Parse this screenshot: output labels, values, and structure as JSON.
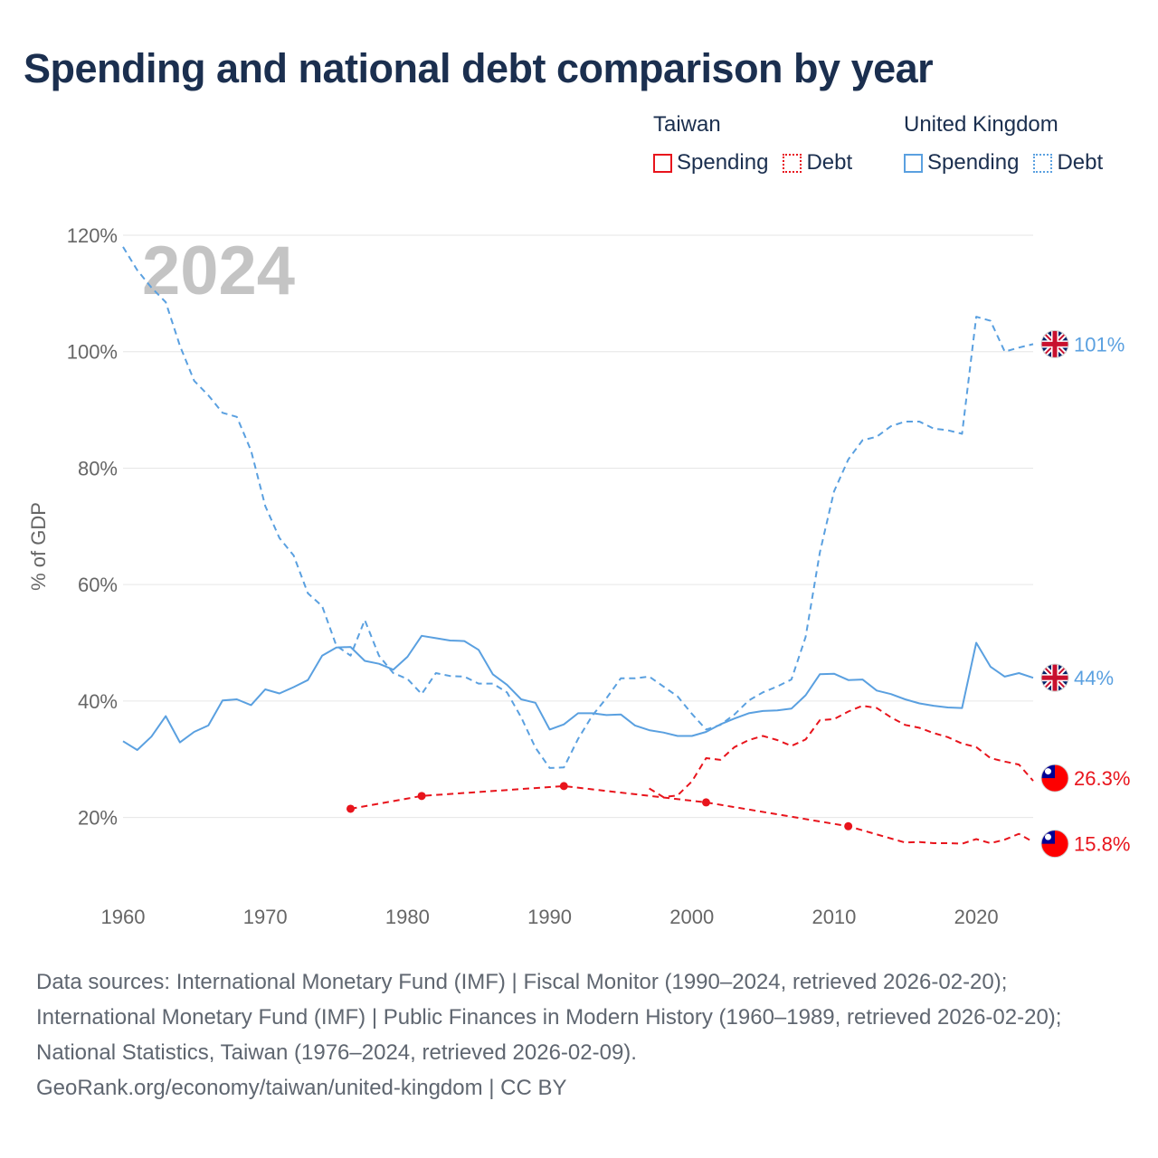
{
  "chart_data": {
    "type": "line",
    "title": "Spending and national debt comparison by year",
    "ylabel": "% of GDP",
    "xlim": [
      1960,
      2024
    ],
    "ylim": [
      10,
      120
    ],
    "yticks": [
      20,
      40,
      60,
      80,
      100,
      120
    ],
    "ytick_labels": [
      "20%",
      "40%",
      "60%",
      "80%",
      "100%",
      "120%"
    ],
    "xticks": [
      1960,
      1970,
      1980,
      1990,
      2000,
      2010,
      2020
    ],
    "xtick_labels": [
      "1960",
      "1970",
      "1980",
      "1990",
      "2000",
      "2010",
      "2020"
    ],
    "year_label": "2024",
    "grid": true,
    "legend": {
      "groups": [
        {
          "title": "Taiwan",
          "items": [
            {
              "label": "Spending",
              "style": "solid",
              "color": "#e8141c"
            },
            {
              "label": "Debt",
              "style": "dotted",
              "color": "#e8141c"
            }
          ]
        },
        {
          "title": "United Kingdom",
          "items": [
            {
              "label": "Spending",
              "style": "solid",
              "color": "#5aa0e0"
            },
            {
              "label": "Debt",
              "style": "dotted",
              "color": "#5aa0e0"
            }
          ]
        }
      ]
    },
    "series": [
      {
        "name": "United Kingdom Debt",
        "country": "United Kingdom",
        "metric": "Debt",
        "color": "#5aa0e0",
        "dash": "dashed",
        "x": [
          1960,
          1961,
          1962,
          1963,
          1964,
          1965,
          1966,
          1967,
          1968,
          1969,
          1970,
          1971,
          1972,
          1973,
          1974,
          1975,
          1976,
          1977,
          1978,
          1979,
          1980,
          1981,
          1982,
          1983,
          1984,
          1985,
          1986,
          1987,
          1988,
          1989,
          1990,
          1991,
          1992,
          1993,
          1994,
          1995,
          1996,
          1997,
          1998,
          1999,
          2000,
          2001,
          2002,
          2003,
          2004,
          2005,
          2006,
          2007,
          2008,
          2009,
          2010,
          2011,
          2012,
          2013,
          2014,
          2015,
          2016,
          2017,
          2018,
          2019,
          2020,
          2021,
          2022,
          2023,
          2024
        ],
        "y": [
          118,
          114,
          111,
          108.5,
          101,
          95,
          92.5,
          89.5,
          88.8,
          83,
          73.5,
          68,
          65,
          58.5,
          56.3,
          49.5,
          47.8,
          53.9,
          47.8,
          44.8,
          43.8,
          41.2,
          44.8,
          44.3,
          44.2,
          43,
          43,
          41.5,
          37.2,
          32,
          28.5,
          28.6,
          33.5,
          37.5,
          40.5,
          43.9,
          43.9,
          44.2,
          42.5,
          40.8,
          37.8,
          35.1,
          35.9,
          37.7,
          40.1,
          41.5,
          42.5,
          43.7,
          51,
          65.5,
          76,
          81.5,
          84.8,
          85.4,
          87.2,
          88,
          88,
          86.8,
          86.5,
          85.9,
          106,
          105.3,
          100,
          100.7,
          101.3
        ],
        "end_label": "101%"
      },
      {
        "name": "United Kingdom Spending",
        "country": "United Kingdom",
        "metric": "Spending",
        "color": "#5aa0e0",
        "dash": "solid",
        "x": [
          1960,
          1961,
          1962,
          1963,
          1964,
          1965,
          1966,
          1967,
          1968,
          1969,
          1970,
          1971,
          1972,
          1973,
          1974,
          1975,
          1976,
          1977,
          1978,
          1979,
          1980,
          1981,
          1982,
          1983,
          1984,
          1985,
          1986,
          1987,
          1988,
          1989,
          1990,
          1991,
          1992,
          1993,
          1994,
          1995,
          1996,
          1997,
          1998,
          1999,
          2000,
          2001,
          2002,
          2003,
          2004,
          2005,
          2006,
          2007,
          2008,
          2009,
          2010,
          2011,
          2012,
          2013,
          2014,
          2015,
          2016,
          2017,
          2018,
          2019,
          2020,
          2021,
          2022,
          2023,
          2024
        ],
        "y": [
          33.1,
          31.6,
          33.9,
          37.4,
          32.9,
          34.7,
          35.8,
          40.1,
          40.3,
          39.3,
          42,
          41.3,
          42.4,
          43.6,
          47.8,
          49.2,
          49.3,
          46.9,
          46.4,
          45.4,
          47.6,
          51.2,
          50.8,
          50.4,
          50.3,
          48.8,
          44.6,
          42.8,
          40.3,
          39.7,
          35.1,
          36,
          37.9,
          37.9,
          37.6,
          37.7,
          35.8,
          35,
          34.6,
          34,
          34,
          34.7,
          36,
          37,
          37.9,
          38.3,
          38.4,
          38.7,
          41,
          44.6,
          44.7,
          43.6,
          43.7,
          41.8,
          41.2,
          40.3,
          39.6,
          39.2,
          38.9,
          38.8,
          50,
          45.9,
          44.2,
          44.8,
          44
        ],
        "end_label": "44%"
      },
      {
        "name": "Taiwan Debt",
        "country": "Taiwan",
        "metric": "Debt",
        "color": "#e8141c",
        "dash": "dashed",
        "x": [
          1997,
          1998,
          1999,
          2000,
          2001,
          2002,
          2003,
          2004,
          2005,
          2006,
          2007,
          2008,
          2009,
          2010,
          2011,
          2012,
          2013,
          2014,
          2015,
          2016,
          2017,
          2018,
          2019,
          2020,
          2021,
          2022,
          2023,
          2024
        ],
        "y": [
          25,
          23.5,
          23.8,
          26.2,
          30.2,
          29.9,
          32.1,
          33.3,
          34,
          33.3,
          32.3,
          33.4,
          36.7,
          36.9,
          38.2,
          39.2,
          38.8,
          37.2,
          35.9,
          35.4,
          34.5,
          33.8,
          32.7,
          32.1,
          30.2,
          29.6,
          29.1,
          26.3
        ],
        "end_label": "26.3%"
      },
      {
        "name": "Taiwan Spending",
        "country": "Taiwan",
        "metric": "Spending",
        "color": "#e8141c",
        "dash": "dashed-sparse",
        "x": [
          1976,
          1981,
          1991,
          2001,
          2011,
          2015,
          2016,
          2017,
          2018,
          2019,
          2020,
          2021,
          2022,
          2023,
          2024
        ],
        "y": [
          21.5,
          23.7,
          25.4,
          22.6,
          18.5,
          15.7,
          15.8,
          15.6,
          15.6,
          15.5,
          16.3,
          15.6,
          16.2,
          17.2,
          15.8
        ],
        "markers_x": [
          1976,
          1981,
          1991,
          2001,
          2011
        ],
        "end_label": "15.8%"
      }
    ]
  },
  "footer": {
    "sources": "Data sources: International Monetary Fund (IMF) | Fiscal Monitor (1990–2024, retrieved 2026-02-20); International Monetary Fund (IMF) | Public Finances in Modern History (1960–1989, retrieved 2026-02-20); National Statistics, Taiwan (1976–2024, retrieved 2026-02-09).",
    "credit": "GeoRank.org/economy/taiwan/united-kingdom | CC BY"
  },
  "flags": {
    "uk": {
      "icon": "uk-flag-icon",
      "blue": "#012169",
      "red": "#c8102e"
    },
    "taiwan": {
      "icon": "taiwan-flag-icon",
      "blue": "#000095",
      "red": "#fe0000"
    }
  }
}
